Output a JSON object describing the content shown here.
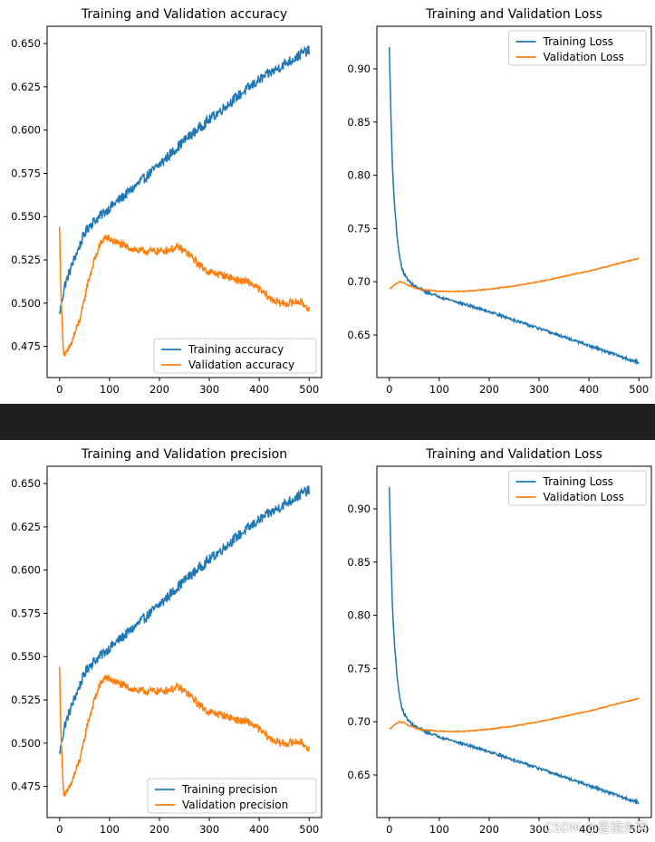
{
  "colors": {
    "training": "#1f77b4",
    "validation": "#ff7f0e",
    "divider": "#1f1f1f"
  },
  "watermark": "CSDN @是镜头阿",
  "panels": [
    {
      "name": "top",
      "charts": [
        {
          "type": "line",
          "title": "Training and Validation accuracy",
          "xlim": [
            -25,
            525
          ],
          "ylim": [
            0.457,
            0.66
          ],
          "xticks": [
            0,
            100,
            200,
            300,
            400,
            500
          ],
          "yticks": [
            0.475,
            0.5,
            0.525,
            0.55,
            0.575,
            0.6,
            0.625,
            0.65
          ],
          "ytick_labels": [
            "0.475",
            "0.500",
            "0.525",
            "0.550",
            "0.575",
            "0.600",
            "0.625",
            "0.650"
          ],
          "legend_loc": "lower-right",
          "series": [
            {
              "name": "Training accuracy",
              "color": "#1f77b4",
              "x": [
                0,
                5,
                10,
                20,
                30,
                40,
                50,
                60,
                80,
                100,
                150,
                200,
                250,
                300,
                350,
                400,
                450,
                490,
                500
              ],
              "y": [
                0.494,
                0.502,
                0.51,
                0.518,
                0.526,
                0.533,
                0.54,
                0.545,
                0.55,
                0.555,
                0.567,
                0.58,
                0.594,
                0.606,
                0.618,
                0.629,
                0.638,
                0.645,
                0.646
              ],
              "noise": 0.003
            },
            {
              "name": "Validation accuracy",
              "color": "#ff7f0e",
              "x": [
                0,
                3,
                8,
                12,
                18,
                25,
                35,
                45,
                55,
                70,
                80,
                90,
                100,
                130,
                160,
                200,
                240,
                260,
                280,
                300,
                330,
                360,
                380,
                400,
                420,
                440,
                460,
                480,
                500
              ],
              "y": [
                0.543,
                0.502,
                0.472,
                0.47,
                0.473,
                0.478,
                0.486,
                0.495,
                0.51,
                0.525,
                0.533,
                0.538,
                0.537,
                0.533,
                0.53,
                0.53,
                0.532,
                0.528,
                0.522,
                0.518,
                0.516,
                0.513,
                0.512,
                0.508,
                0.503,
                0.5,
                0.5,
                0.501,
                0.497
              ],
              "noise": 0.0022
            }
          ]
        },
        {
          "type": "line",
          "title": "Training and Validation Loss",
          "xlim": [
            -25,
            525
          ],
          "ylim": [
            0.61,
            0.94
          ],
          "xticks": [
            0,
            100,
            200,
            300,
            400,
            500
          ],
          "yticks": [
            0.65,
            0.7,
            0.75,
            0.8,
            0.85,
            0.9
          ],
          "ytick_labels": [
            "0.65",
            "0.70",
            "0.75",
            "0.80",
            "0.85",
            "0.90"
          ],
          "legend_loc": "upper-right",
          "series": [
            {
              "name": "Training Loss",
              "color": "#1f77b4",
              "x": [
                0,
                3,
                6,
                10,
                15,
                20,
                25,
                30,
                40,
                50,
                70,
                100,
                150,
                200,
                250,
                300,
                350,
                400,
                450,
                480,
                500
              ],
              "y": [
                0.92,
                0.86,
                0.81,
                0.775,
                0.745,
                0.725,
                0.713,
                0.707,
                0.7,
                0.696,
                0.691,
                0.686,
                0.679,
                0.672,
                0.664,
                0.656,
                0.648,
                0.64,
                0.632,
                0.627,
                0.624
              ],
              "noise": 0.0012
            },
            {
              "name": "Validation Loss",
              "color": "#ff7f0e",
              "x": [
                0,
                10,
                20,
                30,
                40,
                60,
                100,
                150,
                200,
                250,
                300,
                350,
                400,
                450,
                500
              ],
              "y": [
                0.693,
                0.697,
                0.7,
                0.699,
                0.696,
                0.693,
                0.691,
                0.691,
                0.693,
                0.696,
                0.7,
                0.705,
                0.71,
                0.716,
                0.722
              ],
              "noise": 0.0004
            }
          ]
        }
      ]
    },
    {
      "name": "bottom",
      "charts": [
        {
          "type": "line",
          "title": "Training and Validation precision",
          "xlim": [
            -25,
            525
          ],
          "ylim": [
            0.457,
            0.66
          ],
          "xticks": [
            0,
            100,
            200,
            300,
            400,
            500
          ],
          "yticks": [
            0.475,
            0.5,
            0.525,
            0.55,
            0.575,
            0.6,
            0.625,
            0.65
          ],
          "ytick_labels": [
            "0.475",
            "0.500",
            "0.525",
            "0.550",
            "0.575",
            "0.600",
            "0.625",
            "0.650"
          ],
          "legend_loc": "lower-right",
          "series": [
            {
              "name": "Training precision",
              "color": "#1f77b4",
              "x": [
                0,
                5,
                10,
                20,
                30,
                40,
                50,
                60,
                80,
                100,
                150,
                200,
                250,
                300,
                350,
                400,
                450,
                490,
                500
              ],
              "y": [
                0.494,
                0.502,
                0.51,
                0.518,
                0.526,
                0.533,
                0.54,
                0.545,
                0.55,
                0.555,
                0.567,
                0.58,
                0.594,
                0.606,
                0.618,
                0.629,
                0.638,
                0.645,
                0.646
              ],
              "noise": 0.003
            },
            {
              "name": "Validation precision",
              "color": "#ff7f0e",
              "x": [
                0,
                3,
                8,
                12,
                18,
                25,
                35,
                45,
                55,
                70,
                80,
                90,
                100,
                130,
                160,
                200,
                240,
                260,
                280,
                300,
                330,
                360,
                380,
                400,
                420,
                440,
                460,
                480,
                500
              ],
              "y": [
                0.543,
                0.502,
                0.472,
                0.47,
                0.473,
                0.478,
                0.486,
                0.495,
                0.51,
                0.525,
                0.533,
                0.538,
                0.537,
                0.533,
                0.53,
                0.53,
                0.532,
                0.528,
                0.522,
                0.518,
                0.516,
                0.513,
                0.512,
                0.508,
                0.503,
                0.5,
                0.5,
                0.501,
                0.497
              ],
              "noise": 0.0022
            }
          ]
        },
        {
          "type": "line",
          "title": "Training and Validation Loss",
          "xlim": [
            -25,
            525
          ],
          "ylim": [
            0.61,
            0.94
          ],
          "xticks": [
            0,
            100,
            200,
            300,
            400,
            500
          ],
          "yticks": [
            0.65,
            0.7,
            0.75,
            0.8,
            0.85,
            0.9
          ],
          "ytick_labels": [
            "0.65",
            "0.70",
            "0.75",
            "0.80",
            "0.85",
            "0.90"
          ],
          "legend_loc": "upper-right",
          "series": [
            {
              "name": "Training Loss",
              "color": "#1f77b4",
              "x": [
                0,
                3,
                6,
                10,
                15,
                20,
                25,
                30,
                40,
                50,
                70,
                100,
                150,
                200,
                250,
                300,
                350,
                400,
                450,
                480,
                500
              ],
              "y": [
                0.92,
                0.86,
                0.81,
                0.775,
                0.745,
                0.725,
                0.713,
                0.707,
                0.7,
                0.696,
                0.691,
                0.686,
                0.679,
                0.672,
                0.664,
                0.656,
                0.648,
                0.64,
                0.632,
                0.627,
                0.624
              ],
              "noise": 0.0012
            },
            {
              "name": "Validation Loss",
              "color": "#ff7f0e",
              "x": [
                0,
                10,
                20,
                30,
                40,
                60,
                100,
                150,
                200,
                250,
                300,
                350,
                400,
                450,
                500
              ],
              "y": [
                0.693,
                0.697,
                0.7,
                0.699,
                0.696,
                0.693,
                0.691,
                0.691,
                0.693,
                0.696,
                0.7,
                0.705,
                0.71,
                0.716,
                0.722
              ],
              "noise": 0.0004
            }
          ]
        }
      ]
    }
  ],
  "chart_data": [
    {
      "type": "line",
      "title": "Training and Validation accuracy",
      "xlim": [
        -25,
        525
      ],
      "ylim": [
        0.457,
        0.66
      ],
      "series": [
        {
          "name": "Training accuracy",
          "x": [
            0,
            50,
            100,
            200,
            300,
            400,
            500
          ],
          "y": [
            0.494,
            0.54,
            0.555,
            0.58,
            0.606,
            0.629,
            0.646
          ]
        },
        {
          "name": "Validation accuracy",
          "x": [
            0,
            10,
            50,
            90,
            200,
            300,
            400,
            500
          ],
          "y": [
            0.543,
            0.47,
            0.502,
            0.538,
            0.53,
            0.518,
            0.508,
            0.497
          ]
        }
      ],
      "legend": "lower-right"
    },
    {
      "type": "line",
      "title": "Training and Validation Loss",
      "xlim": [
        -25,
        525
      ],
      "ylim": [
        0.61,
        0.94
      ],
      "series": [
        {
          "name": "Training Loss",
          "x": [
            0,
            20,
            50,
            100,
            200,
            300,
            400,
            500
          ],
          "y": [
            0.92,
            0.725,
            0.696,
            0.686,
            0.672,
            0.656,
            0.64,
            0.624
          ]
        },
        {
          "name": "Validation Loss",
          "x": [
            0,
            20,
            100,
            200,
            300,
            400,
            500
          ],
          "y": [
            0.693,
            0.7,
            0.691,
            0.693,
            0.7,
            0.71,
            0.722
          ]
        }
      ],
      "legend": "upper-right"
    },
    {
      "type": "line",
      "title": "Training and Validation precision",
      "xlim": [
        -25,
        525
      ],
      "ylim": [
        0.457,
        0.66
      ],
      "series": [
        {
          "name": "Training precision",
          "x": [
            0,
            50,
            100,
            200,
            300,
            400,
            500
          ],
          "y": [
            0.494,
            0.54,
            0.555,
            0.58,
            0.606,
            0.629,
            0.646
          ]
        },
        {
          "name": "Validation precision",
          "x": [
            0,
            10,
            50,
            90,
            200,
            300,
            400,
            500
          ],
          "y": [
            0.543,
            0.47,
            0.502,
            0.538,
            0.53,
            0.518,
            0.508,
            0.497
          ]
        }
      ],
      "legend": "lower-right"
    },
    {
      "type": "line",
      "title": "Training and Validation Loss",
      "xlim": [
        -25,
        525
      ],
      "ylim": [
        0.61,
        0.94
      ],
      "series": [
        {
          "name": "Training Loss",
          "x": [
            0,
            20,
            50,
            100,
            200,
            300,
            400,
            500
          ],
          "y": [
            0.92,
            0.725,
            0.696,
            0.686,
            0.672,
            0.656,
            0.64,
            0.624
          ]
        },
        {
          "name": "Validation Loss",
          "x": [
            0,
            20,
            100,
            200,
            300,
            400,
            500
          ],
          "y": [
            0.693,
            0.7,
            0.691,
            0.693,
            0.7,
            0.71,
            0.722
          ]
        }
      ],
      "legend": "upper-right"
    }
  ]
}
